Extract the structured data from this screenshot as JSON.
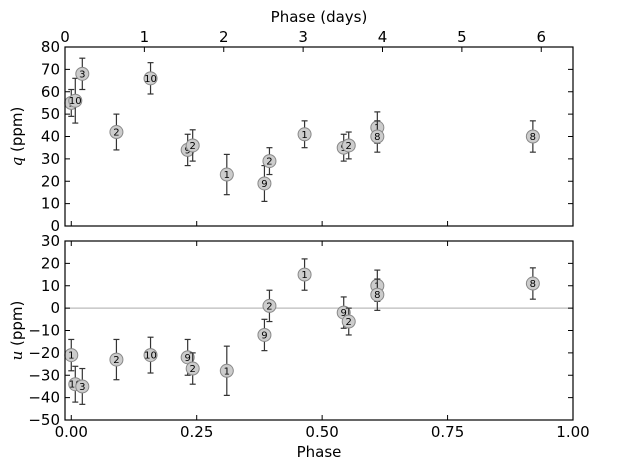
{
  "chart_data": {
    "type": "scatter",
    "style": {
      "marker_fill": "#cccccc",
      "marker_stroke": "#888888",
      "errorbar_color": "#333333",
      "zero_line_color": "#bbbbbb"
    },
    "top_axis": {
      "label": "Phase (days)",
      "range": [
        0,
        6.4
      ],
      "ticks": [
        0,
        1,
        2,
        3,
        4,
        5,
        6
      ],
      "tick_labels": [
        "0",
        "1",
        "2",
        "3",
        "4",
        "5",
        "6"
      ]
    },
    "bottom_axis": {
      "label": "Phase",
      "range": [
        -0.0125,
        1.0
      ],
      "ticks": [
        0.0,
        0.25,
        0.5,
        0.75,
        1.0
      ],
      "tick_labels": [
        "0.00",
        "0.25",
        "0.50",
        "0.75",
        "1.00"
      ]
    },
    "panels": [
      {
        "name": "q",
        "ylabel_symbol": "q",
        "ylabel_unit": " (ppm)",
        "ylim": [
          0,
          80
        ],
        "yticks": [
          0,
          10,
          20,
          30,
          40,
          50,
          60,
          70,
          80
        ],
        "ytick_labels": [
          "0",
          "10",
          "20",
          "30",
          "40",
          "50",
          "60",
          "70",
          "80"
        ],
        "zero_line": false,
        "points": [
          {
            "x": 0.0,
            "y": 55,
            "err": 6,
            "label": "1"
          },
          {
            "x": 0.008,
            "y": 56,
            "err": 10,
            "label": "10"
          },
          {
            "x": 0.022,
            "y": 68,
            "err": 7,
            "label": "3"
          },
          {
            "x": 0.09,
            "y": 42,
            "err": 8,
            "label": "2"
          },
          {
            "x": 0.158,
            "y": 66,
            "err": 7,
            "label": "10"
          },
          {
            "x": 0.232,
            "y": 34,
            "err": 7,
            "label": "9"
          },
          {
            "x": 0.242,
            "y": 36,
            "err": 7,
            "label": "2"
          },
          {
            "x": 0.31,
            "y": 23,
            "err": 9,
            "label": "1"
          },
          {
            "x": 0.385,
            "y": 19,
            "err": 8,
            "label": "9"
          },
          {
            "x": 0.395,
            "y": 29,
            "err": 6,
            "label": "2"
          },
          {
            "x": 0.465,
            "y": 41,
            "err": 6,
            "label": "1"
          },
          {
            "x": 0.543,
            "y": 35,
            "err": 6,
            "label": "9"
          },
          {
            "x": 0.553,
            "y": 36,
            "err": 6,
            "label": "2"
          },
          {
            "x": 0.61,
            "y": 44,
            "err": 7,
            "label": "1"
          },
          {
            "x": 0.61,
            "y": 40,
            "err": 7,
            "label": "8"
          },
          {
            "x": 0.92,
            "y": 40,
            "err": 7,
            "label": "8"
          }
        ]
      },
      {
        "name": "u",
        "ylabel_symbol": "u",
        "ylabel_unit": " (ppm)",
        "ylim": [
          -50,
          30
        ],
        "yticks": [
          -50,
          -40,
          -30,
          -20,
          -10,
          0,
          10,
          20,
          30
        ],
        "ytick_labels": [
          "−50",
          "−40",
          "−30",
          "−20",
          "−10",
          "0",
          "10",
          "20",
          "30"
        ],
        "zero_line": true,
        "points": [
          {
            "x": 0.0,
            "y": -21,
            "err": 7,
            "label": "1"
          },
          {
            "x": 0.008,
            "y": -34,
            "err": 8,
            "label": "10"
          },
          {
            "x": 0.022,
            "y": -35,
            "err": 8,
            "label": "3"
          },
          {
            "x": 0.09,
            "y": -23,
            "err": 9,
            "label": "2"
          },
          {
            "x": 0.158,
            "y": -21,
            "err": 8,
            "label": "10"
          },
          {
            "x": 0.232,
            "y": -22,
            "err": 8,
            "label": "9"
          },
          {
            "x": 0.242,
            "y": -27,
            "err": 7,
            "label": "2"
          },
          {
            "x": 0.31,
            "y": -28,
            "err": 11,
            "label": "1"
          },
          {
            "x": 0.385,
            "y": -12,
            "err": 7,
            "label": "9"
          },
          {
            "x": 0.395,
            "y": 1,
            "err": 7,
            "label": "2"
          },
          {
            "x": 0.465,
            "y": 15,
            "err": 7,
            "label": "1"
          },
          {
            "x": 0.543,
            "y": -2,
            "err": 7,
            "label": "9"
          },
          {
            "x": 0.553,
            "y": -6,
            "err": 6,
            "label": "2"
          },
          {
            "x": 0.61,
            "y": 10,
            "err": 7,
            "label": "1"
          },
          {
            "x": 0.61,
            "y": 6,
            "err": 7,
            "label": "8"
          },
          {
            "x": 0.92,
            "y": 11,
            "err": 7,
            "label": "8"
          }
        ]
      }
    ]
  }
}
